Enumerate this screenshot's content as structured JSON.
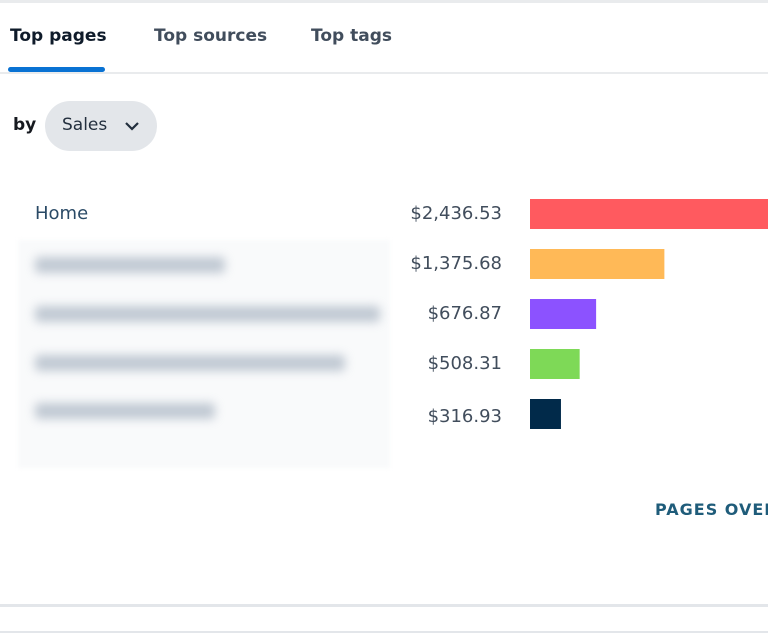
{
  "tabs": [
    "Top pages",
    "Top sources",
    "Top tags"
  ],
  "filter": {
    "prefix": "by",
    "value": "Sales"
  },
  "chart_data": {
    "type": "bar",
    "orientation": "horizontal",
    "categories": [
      "Home",
      null,
      null,
      null,
      null
    ],
    "values": [
      2436.53,
      1375.68,
      676.87,
      508.31,
      316.93
    ],
    "value_labels": [
      "$2,436.53",
      "$1,375.68",
      "$676.87",
      "$508.31",
      "$316.93"
    ],
    "colors": [
      "#ff5a5f",
      "#ffb957",
      "#8c52ff",
      "#7ed957",
      "#012a4a"
    ]
  },
  "link": "PAGES OVER"
}
